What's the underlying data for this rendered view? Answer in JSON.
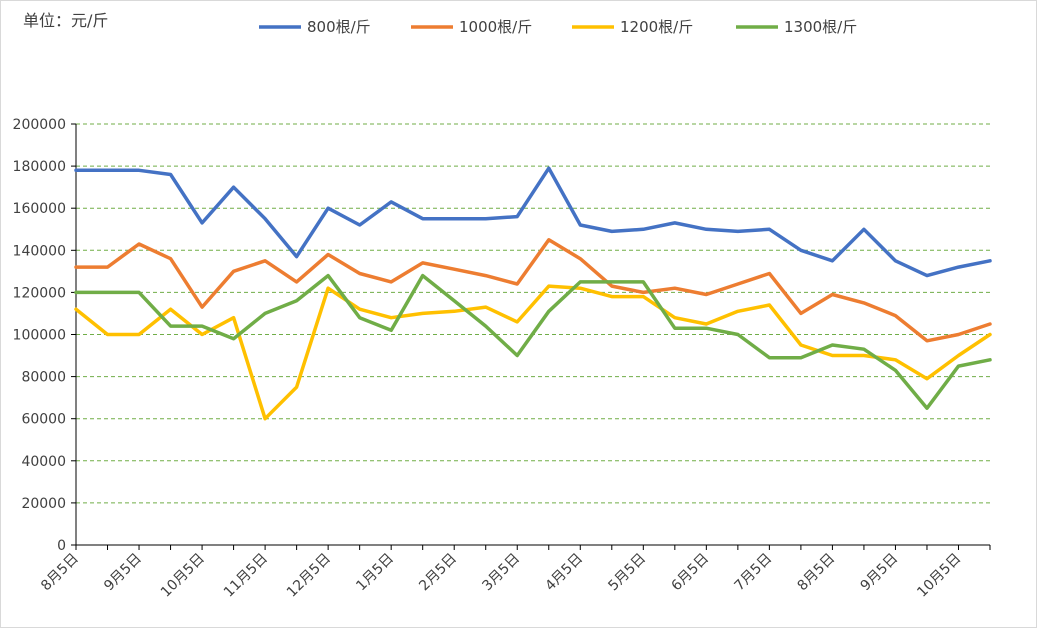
{
  "chart_data": {
    "type": "line",
    "unit_label": "单位：元/斤",
    "ylim": [
      0,
      200000
    ],
    "yticks": [
      0,
      20000,
      40000,
      60000,
      80000,
      100000,
      120000,
      140000,
      160000,
      180000,
      200000
    ],
    "ytick_labels": [
      "0",
      "20000",
      "40000",
      "60000",
      "80000",
      "100000",
      "120000",
      "140000",
      "160000",
      "180000",
      "200000"
    ],
    "x_count": 30,
    "xtick_positions": [
      0,
      2,
      4,
      6,
      8,
      10,
      12,
      14,
      16,
      18,
      20,
      22,
      24,
      26,
      28
    ],
    "xtick_labels": [
      "8月5日",
      "9月5日",
      "10月5日",
      "11月5日",
      "12月5日",
      "1月5日",
      "2月5日",
      "3月5日",
      "4月5日",
      "5月5日",
      "6月5日",
      "7月5日",
      "8月5日",
      "9月5日",
      "10月5日"
    ],
    "grid": true,
    "legend_position": "top",
    "series": [
      {
        "name": "800根/斤",
        "color": "#4472c4",
        "values": [
          178000,
          178000,
          178000,
          176000,
          153000,
          170000,
          155000,
          137000,
          160000,
          152000,
          163000,
          155000,
          155000,
          155000,
          156000,
          179000,
          152000,
          149000,
          150000,
          153000,
          150000,
          149000,
          150000,
          140000,
          135000,
          150000,
          135000,
          128000,
          132000,
          135000
        ]
      },
      {
        "name": "1000根/斤",
        "color": "#ed7d31",
        "values": [
          132000,
          132000,
          143000,
          136000,
          113000,
          130000,
          135000,
          125000,
          138000,
          129000,
          125000,
          134000,
          131000,
          128000,
          124000,
          145000,
          136000,
          123000,
          120000,
          122000,
          119000,
          124000,
          129000,
          110000,
          119000,
          115000,
          109000,
          97000,
          100000,
          105000
        ]
      },
      {
        "name": "1200根/斤",
        "color": "#ffc000",
        "values": [
          112000,
          100000,
          100000,
          112000,
          100000,
          108000,
          60000,
          75000,
          122000,
          112000,
          108000,
          110000,
          111000,
          113000,
          106000,
          123000,
          122000,
          118000,
          118000,
          108000,
          105000,
          111000,
          114000,
          95000,
          90000,
          90000,
          88000,
          79000,
          90000,
          100000
        ]
      },
      {
        "name": "1300根/斤",
        "color": "#70ad47",
        "values": [
          120000,
          120000,
          120000,
          104000,
          104000,
          98000,
          110000,
          116000,
          128000,
          108000,
          102000,
          128000,
          116000,
          104000,
          90000,
          111000,
          125000,
          125000,
          125000,
          103000,
          103000,
          100000,
          89000,
          89000,
          95000,
          93000,
          83000,
          65000,
          85000,
          88000
        ]
      }
    ]
  }
}
